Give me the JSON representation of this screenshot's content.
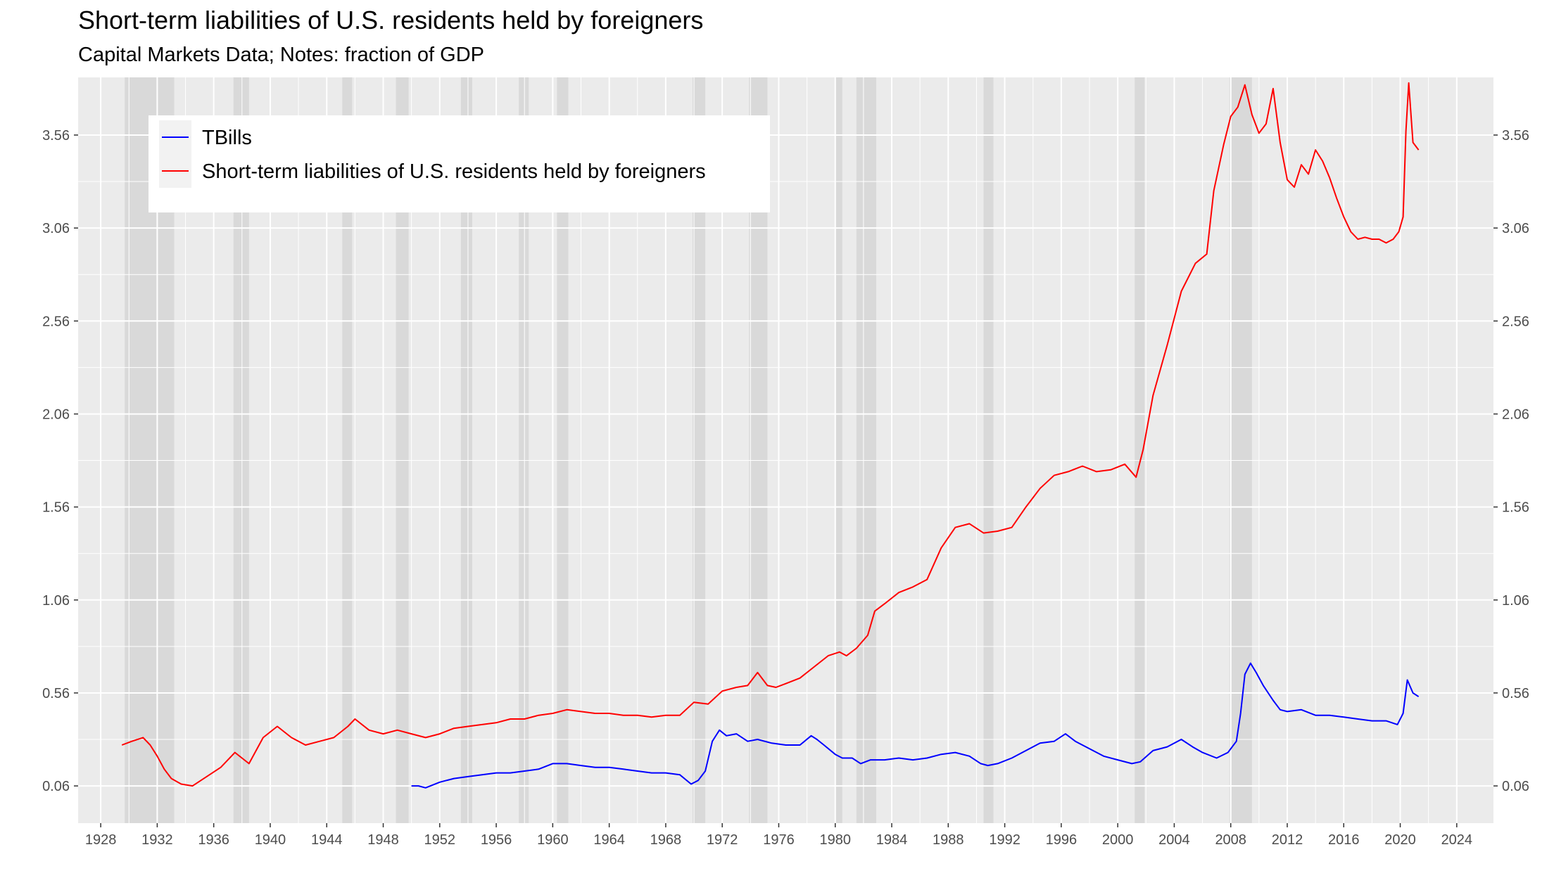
{
  "title": "Short-term liabilities of U.S. residents held by foreigners",
  "subtitle": "Capital Markets Data; Notes: fraction of GDP",
  "chart_data": {
    "type": "line",
    "title": "Short-term liabilities of U.S. residents held by foreigners",
    "subtitle": "Capital Markets Data; Notes: fraction of GDP",
    "xlabel": "",
    "ylabel": "",
    "xlim": [
      1926.4,
      2026.6
    ],
    "ylim": [
      -0.14,
      3.87
    ],
    "x_ticks": [
      1928,
      1932,
      1936,
      1940,
      1944,
      1948,
      1952,
      1956,
      1960,
      1964,
      1968,
      1972,
      1976,
      1980,
      1984,
      1988,
      1992,
      1996,
      2000,
      2004,
      2008,
      2012,
      2016,
      2020,
      2024
    ],
    "y_ticks": [
      0.06,
      0.56,
      1.06,
      1.56,
      2.06,
      2.56,
      3.06,
      3.56
    ],
    "y_tick_labels": [
      "0.06",
      "0.56",
      "1.06",
      "1.56",
      "2.06",
      "2.56",
      "3.06",
      "3.56"
    ],
    "secondary_y_axis": true,
    "grid": true,
    "legend_position": "top-left",
    "recession_shading": [
      [
        1929.7,
        1933.2
      ],
      [
        1937.4,
        1938.5
      ],
      [
        1945.1,
        1945.8
      ],
      [
        1948.9,
        1949.8
      ],
      [
        1953.5,
        1954.3
      ],
      [
        1957.6,
        1958.3
      ],
      [
        1960.3,
        1961.1
      ],
      [
        1969.9,
        1970.8
      ],
      [
        1973.9,
        1975.2
      ],
      [
        1980.0,
        1980.5
      ],
      [
        1981.5,
        1982.9
      ],
      [
        1990.5,
        1991.2
      ],
      [
        2001.2,
        2001.9
      ],
      [
        2007.9,
        2009.5
      ]
    ],
    "series": [
      {
        "name": "TBills",
        "color": "#0000ff",
        "x": [
          1950.0,
          1950.5,
          1951.0,
          1952.0,
          1953.0,
          1954.0,
          1955.0,
          1956.0,
          1957.0,
          1958.0,
          1959.0,
          1960.0,
          1961.0,
          1962.0,
          1963.0,
          1964.0,
          1965.0,
          1966.0,
          1967.0,
          1968.0,
          1969.0,
          1969.8,
          1970.3,
          1970.8,
          1971.3,
          1971.8,
          1972.3,
          1973.0,
          1973.8,
          1974.5,
          1975.5,
          1976.5,
          1977.5,
          1978.3,
          1978.7,
          1979.2,
          1980.0,
          1980.5,
          1981.2,
          1981.8,
          1982.5,
          1983.5,
          1984.5,
          1985.5,
          1986.5,
          1987.5,
          1988.5,
          1989.5,
          1990.3,
          1990.8,
          1991.5,
          1992.5,
          1993.5,
          1994.5,
          1995.5,
          1996.3,
          1997.0,
          1998.0,
          1999.0,
          2000.0,
          2001.0,
          2001.6,
          2002.5,
          2003.5,
          2004.5,
          2005.3,
          2006.0,
          2007.0,
          2007.8,
          2008.4,
          2008.7,
          2009.0,
          2009.4,
          2009.8,
          2010.3,
          2011.0,
          2011.5,
          2012.0,
          2013.0,
          2014.0,
          2015.0,
          2016.0,
          2017.0,
          2018.0,
          2019.0,
          2019.8,
          2020.2,
          2020.5,
          2020.9,
          2021.3
        ],
        "values": [
          0.06,
          0.06,
          0.05,
          0.08,
          0.1,
          0.11,
          0.12,
          0.13,
          0.13,
          0.14,
          0.15,
          0.18,
          0.18,
          0.17,
          0.16,
          0.16,
          0.15,
          0.14,
          0.13,
          0.13,
          0.12,
          0.07,
          0.09,
          0.14,
          0.3,
          0.36,
          0.33,
          0.34,
          0.3,
          0.31,
          0.29,
          0.28,
          0.28,
          0.33,
          0.31,
          0.28,
          0.23,
          0.21,
          0.21,
          0.18,
          0.2,
          0.2,
          0.21,
          0.2,
          0.21,
          0.23,
          0.24,
          0.22,
          0.18,
          0.17,
          0.18,
          0.21,
          0.25,
          0.29,
          0.3,
          0.34,
          0.3,
          0.26,
          0.22,
          0.2,
          0.18,
          0.19,
          0.25,
          0.27,
          0.31,
          0.27,
          0.24,
          0.21,
          0.24,
          0.3,
          0.45,
          0.66,
          0.72,
          0.67,
          0.6,
          0.52,
          0.47,
          0.46,
          0.47,
          0.44,
          0.44,
          0.43,
          0.42,
          0.41,
          0.41,
          0.39,
          0.45,
          0.63,
          0.56,
          0.54
        ]
      },
      {
        "name": "Short-term liabilities of U.S. residents held by foreigners",
        "color": "#ff0000",
        "x": [
          1929.5,
          1930.2,
          1931.0,
          1931.5,
          1932.0,
          1932.5,
          1933.0,
          1933.7,
          1934.5,
          1935.5,
          1936.5,
          1937.5,
          1938.5,
          1939.5,
          1940.5,
          1941.5,
          1942.5,
          1943.5,
          1944.5,
          1945.5,
          1946.0,
          1947.0,
          1948.0,
          1949.0,
          1950.0,
          1951.0,
          1952.0,
          1953.0,
          1954.0,
          1955.0,
          1956.0,
          1957.0,
          1958.0,
          1959.0,
          1960.0,
          1961.0,
          1962.0,
          1963.0,
          1964.0,
          1965.0,
          1966.0,
          1967.0,
          1968.0,
          1969.0,
          1970.0,
          1971.0,
          1972.0,
          1973.0,
          1973.8,
          1974.5,
          1975.2,
          1975.8,
          1976.5,
          1977.5,
          1978.5,
          1979.5,
          1980.3,
          1980.8,
          1981.5,
          1982.3,
          1982.8,
          1983.5,
          1984.5,
          1985.5,
          1986.5,
          1987.5,
          1988.5,
          1989.5,
          1990.5,
          1991.5,
          1992.5,
          1993.5,
          1994.5,
          1995.5,
          1996.5,
          1997.5,
          1998.5,
          1999.5,
          2000.5,
          2001.3,
          2001.8,
          2002.5,
          2003.5,
          2004.5,
          2005.5,
          2006.3,
          2006.8,
          2007.5,
          2008.0,
          2008.5,
          2009.0,
          2009.5,
          2010.0,
          2010.5,
          2011.0,
          2011.5,
          2012.0,
          2012.5,
          2013.0,
          2013.5,
          2014.0,
          2014.5,
          2015.0,
          2015.5,
          2016.0,
          2016.5,
          2017.0,
          2017.5,
          2018.0,
          2018.5,
          2019.0,
          2019.5,
          2019.9,
          2020.2,
          2020.4,
          2020.6,
          2020.9,
          2021.3
        ],
        "values": [
          0.28,
          0.3,
          0.32,
          0.28,
          0.22,
          0.15,
          0.1,
          0.07,
          0.06,
          0.11,
          0.16,
          0.24,
          0.18,
          0.32,
          0.38,
          0.32,
          0.28,
          0.3,
          0.32,
          0.38,
          0.42,
          0.36,
          0.34,
          0.36,
          0.34,
          0.32,
          0.34,
          0.37,
          0.38,
          0.39,
          0.4,
          0.42,
          0.42,
          0.44,
          0.45,
          0.47,
          0.46,
          0.45,
          0.45,
          0.44,
          0.44,
          0.43,
          0.44,
          0.44,
          0.51,
          0.5,
          0.57,
          0.59,
          0.6,
          0.67,
          0.6,
          0.59,
          0.61,
          0.64,
          0.7,
          0.76,
          0.78,
          0.76,
          0.8,
          0.87,
          1.0,
          1.04,
          1.1,
          1.13,
          1.17,
          1.34,
          1.45,
          1.47,
          1.42,
          1.43,
          1.45,
          1.56,
          1.66,
          1.73,
          1.75,
          1.78,
          1.75,
          1.76,
          1.79,
          1.72,
          1.87,
          2.16,
          2.43,
          2.72,
          2.87,
          2.92,
          3.26,
          3.51,
          3.66,
          3.71,
          3.83,
          3.67,
          3.57,
          3.62,
          3.81,
          3.52,
          3.32,
          3.28,
          3.4,
          3.35,
          3.48,
          3.42,
          3.33,
          3.22,
          3.12,
          3.04,
          3.0,
          3.01,
          3.0,
          3.0,
          2.98,
          3.0,
          3.04,
          3.12,
          3.58,
          3.84,
          3.52,
          3.48
        ]
      }
    ]
  }
}
